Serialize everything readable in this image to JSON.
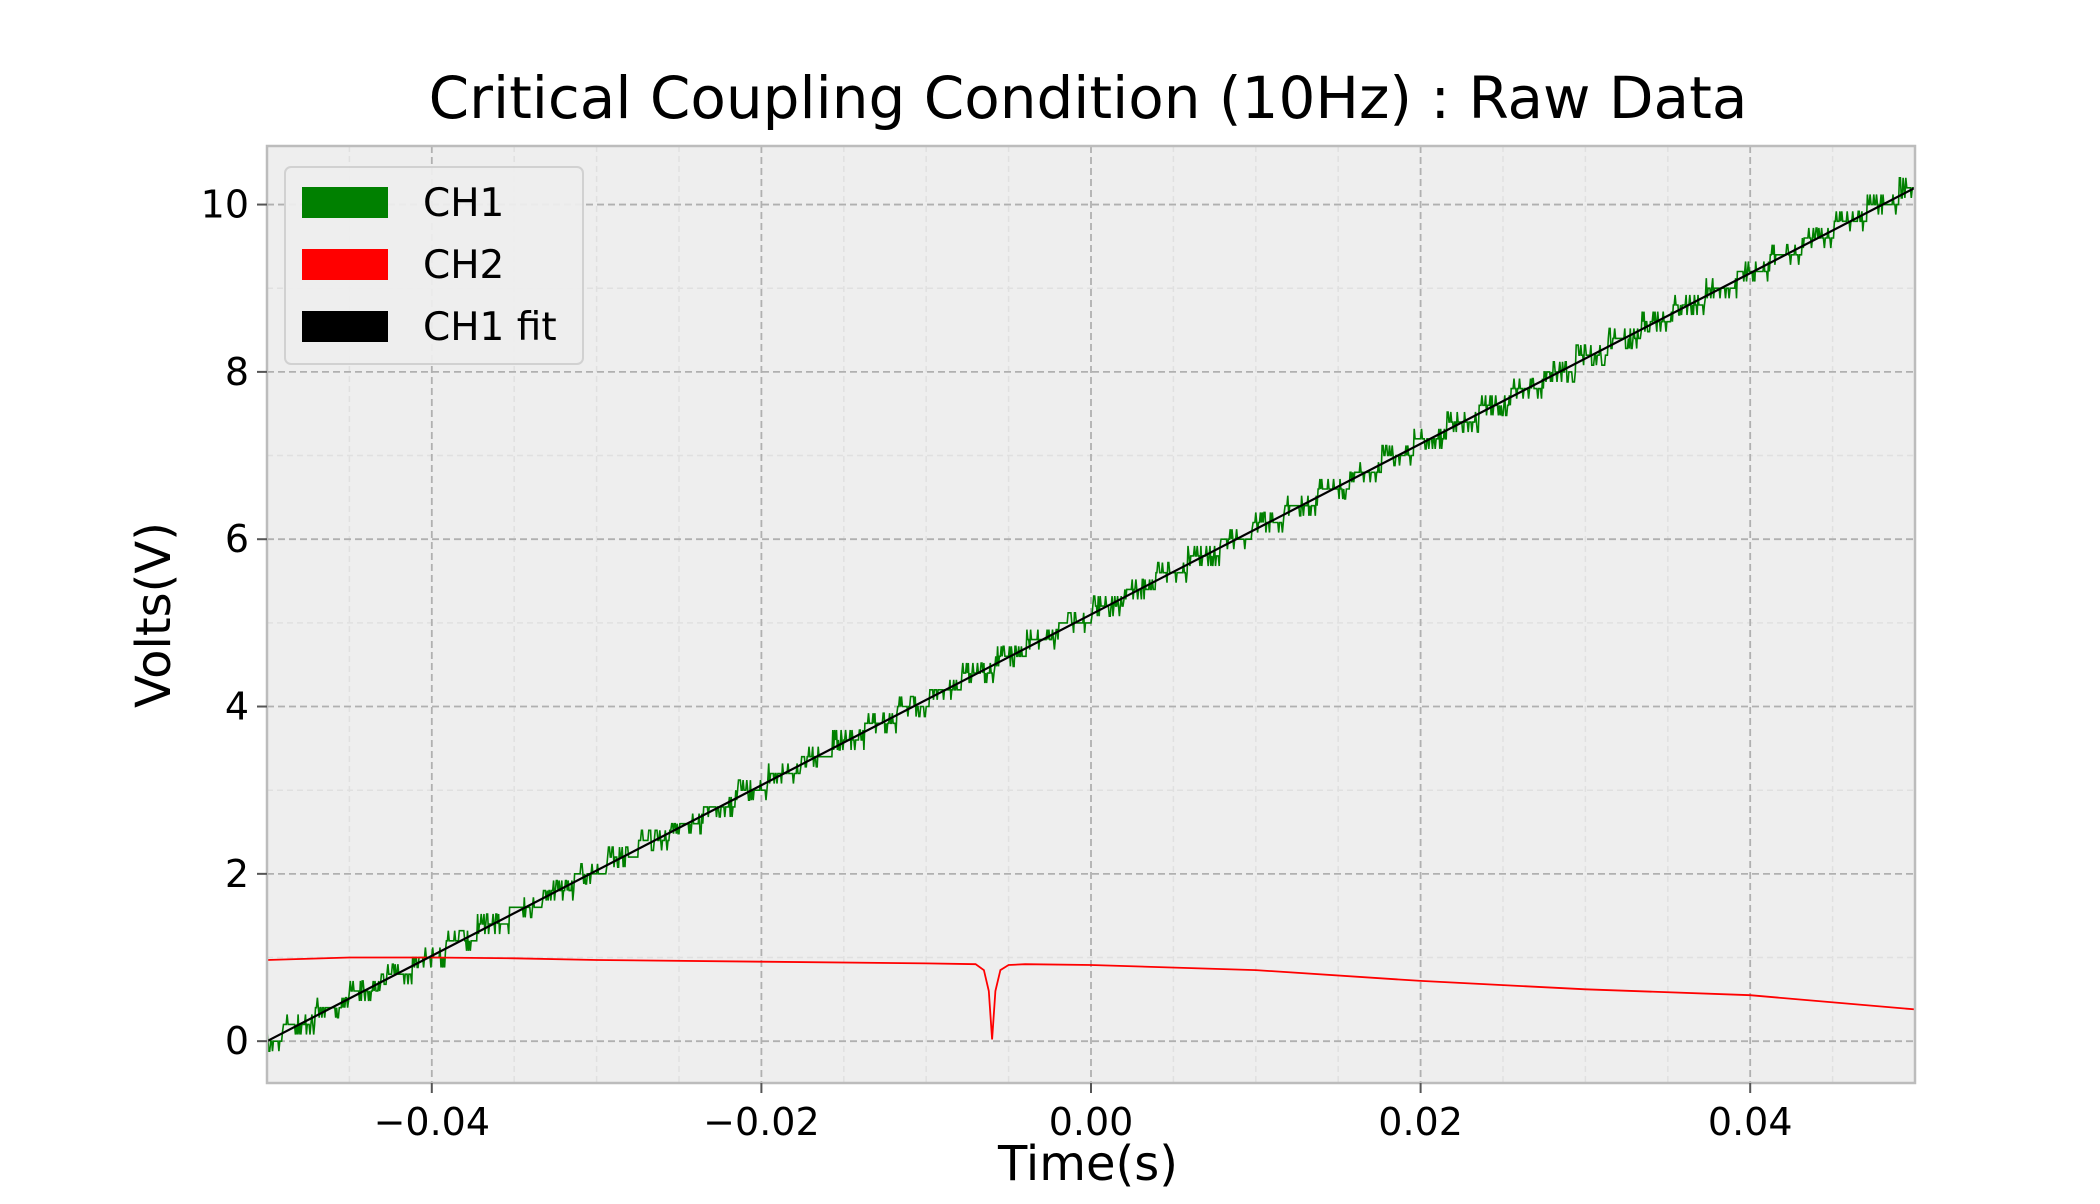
{
  "chart_data": {
    "type": "line",
    "title": "Critical Coupling Condition (10Hz) : Raw Data",
    "xlabel": "Time(s)",
    "ylabel": "Volts(V)",
    "xlim": [
      -0.05,
      0.05
    ],
    "ylim": [
      -0.5,
      10.7
    ],
    "x_ticks": [
      -0.04,
      -0.02,
      0.0,
      0.02,
      0.04
    ],
    "x_tick_labels": [
      "−0.04",
      "−0.02",
      "0.00",
      "0.02",
      "0.04"
    ],
    "y_ticks": [
      0,
      2,
      4,
      6,
      8,
      10
    ],
    "y_tick_labels": [
      "0",
      "2",
      "4",
      "6",
      "8",
      "10"
    ],
    "grid": true,
    "legend_position": "top-left",
    "series": [
      {
        "name": "CH1",
        "color": "#008000",
        "style": "stepped-noisy",
        "x": [
          -0.05,
          -0.04,
          -0.03,
          -0.02,
          -0.01,
          0.0,
          0.01,
          0.02,
          0.03,
          0.04,
          0.05
        ],
        "y": [
          0.0,
          1.0,
          2.1,
          3.1,
          4.1,
          5.1,
          6.1,
          7.1,
          8.1,
          9.1,
          10.2
        ]
      },
      {
        "name": "CH2",
        "color": "#ff0000",
        "style": "line",
        "x": [
          -0.05,
          -0.045,
          -0.04,
          -0.035,
          -0.03,
          -0.02,
          -0.01,
          -0.007,
          -0.0065,
          -0.0062,
          -0.006,
          -0.0058,
          -0.0055,
          -0.005,
          -0.004,
          0.0,
          0.01,
          0.02,
          0.03,
          0.04,
          0.05
        ],
        "y": [
          0.97,
          1.0,
          1.0,
          0.99,
          0.97,
          0.95,
          0.93,
          0.92,
          0.85,
          0.6,
          0.02,
          0.6,
          0.85,
          0.91,
          0.92,
          0.91,
          0.85,
          0.72,
          0.62,
          0.55,
          0.38
        ]
      },
      {
        "name": "CH1 fit",
        "color": "#000000",
        "style": "line",
        "x": [
          -0.05,
          0.05
        ],
        "y": [
          0.0,
          10.2
        ]
      }
    ]
  }
}
